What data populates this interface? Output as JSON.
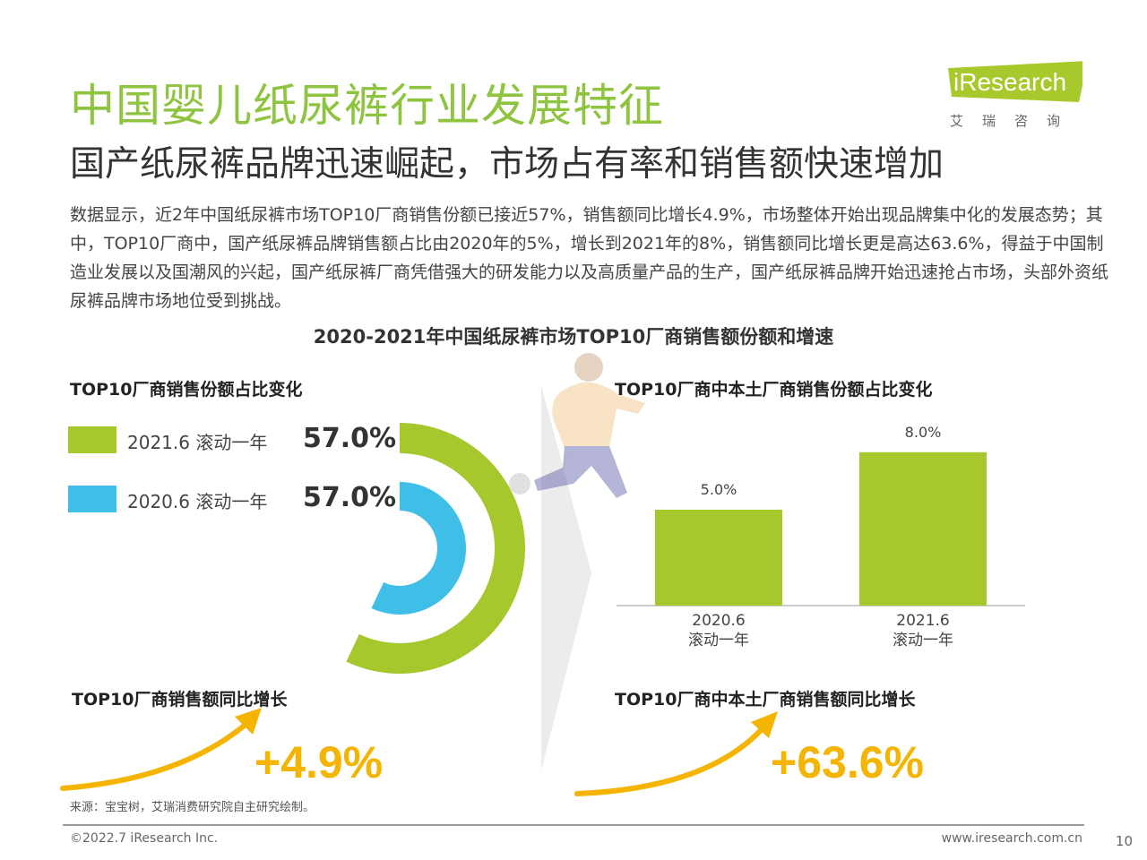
{
  "header": {
    "title": "中国婴儿纸尿裤行业发展特征",
    "subtitle": "国产纸尿裤品牌迅速崛起，市场占有率和销售额快速增加",
    "body": "数据显示，近2年中国纸尿裤市场TOP10厂商销售份额已接近57%，销售额同比增长4.9%，市场整体开始出现品牌集中化的发展态势；其中，TOP10厂商中，国产纸尿裤品牌销售额占比由2020年的5%，增长到2021年的8%，销售额同比增长更是高达63.6%，得益于中国制造业发展以及国潮风的兴起，国产纸尿裤厂商凭借强大的研发能力以及高质量产品的生产，国产纸尿裤品牌开始迅速抢占市场，头部外资纸尿裤品牌市场地位受到挑战。"
  },
  "logo": {
    "brand": "iResearch",
    "cn": "艾瑞咨询",
    "color": "#a8c92b"
  },
  "chart_title": "2020-2021年中国纸尿裤市场TOP10厂商销售额份额和增速",
  "colors": {
    "green": "#a6c82d",
    "blue": "#3fbfe8",
    "gold": "#f5b400",
    "title_green": "#8ec43f"
  },
  "chart_data": [
    {
      "type": "pie",
      "title": "TOP10厂商销售份额占比变化",
      "series": [
        {
          "name": "2021.6 滚动一年",
          "value": 57.0,
          "label": "57.0%",
          "color": "#a6c82d"
        },
        {
          "name": "2020.6 滚动一年",
          "value": 57.0,
          "label": "57.0%",
          "color": "#3fbfe8"
        }
      ]
    },
    {
      "type": "bar",
      "title": "TOP10厂商中本土厂商销售份额占比变化",
      "categories": [
        "2020.6\n滚动一年",
        "2021.6\n滚动一年"
      ],
      "values": [
        5.0,
        8.0
      ],
      "labels": [
        "5.0%",
        "8.0%"
      ],
      "ylim": [
        0,
        10
      ],
      "color": "#a6c82d"
    }
  ],
  "growth": {
    "left_title": "TOP10厂商销售额同比增长",
    "left_value": "+4.9%",
    "right_title": "TOP10厂商中本土厂商销售额同比增长",
    "right_value": "+63.6%"
  },
  "footer": {
    "source": "来源：宝宝树，艾瑞消费研究院自主研究绘制。",
    "copyright": "©2022.7 iResearch Inc.",
    "website": "www.iresearch.com.cn",
    "page": "10"
  }
}
